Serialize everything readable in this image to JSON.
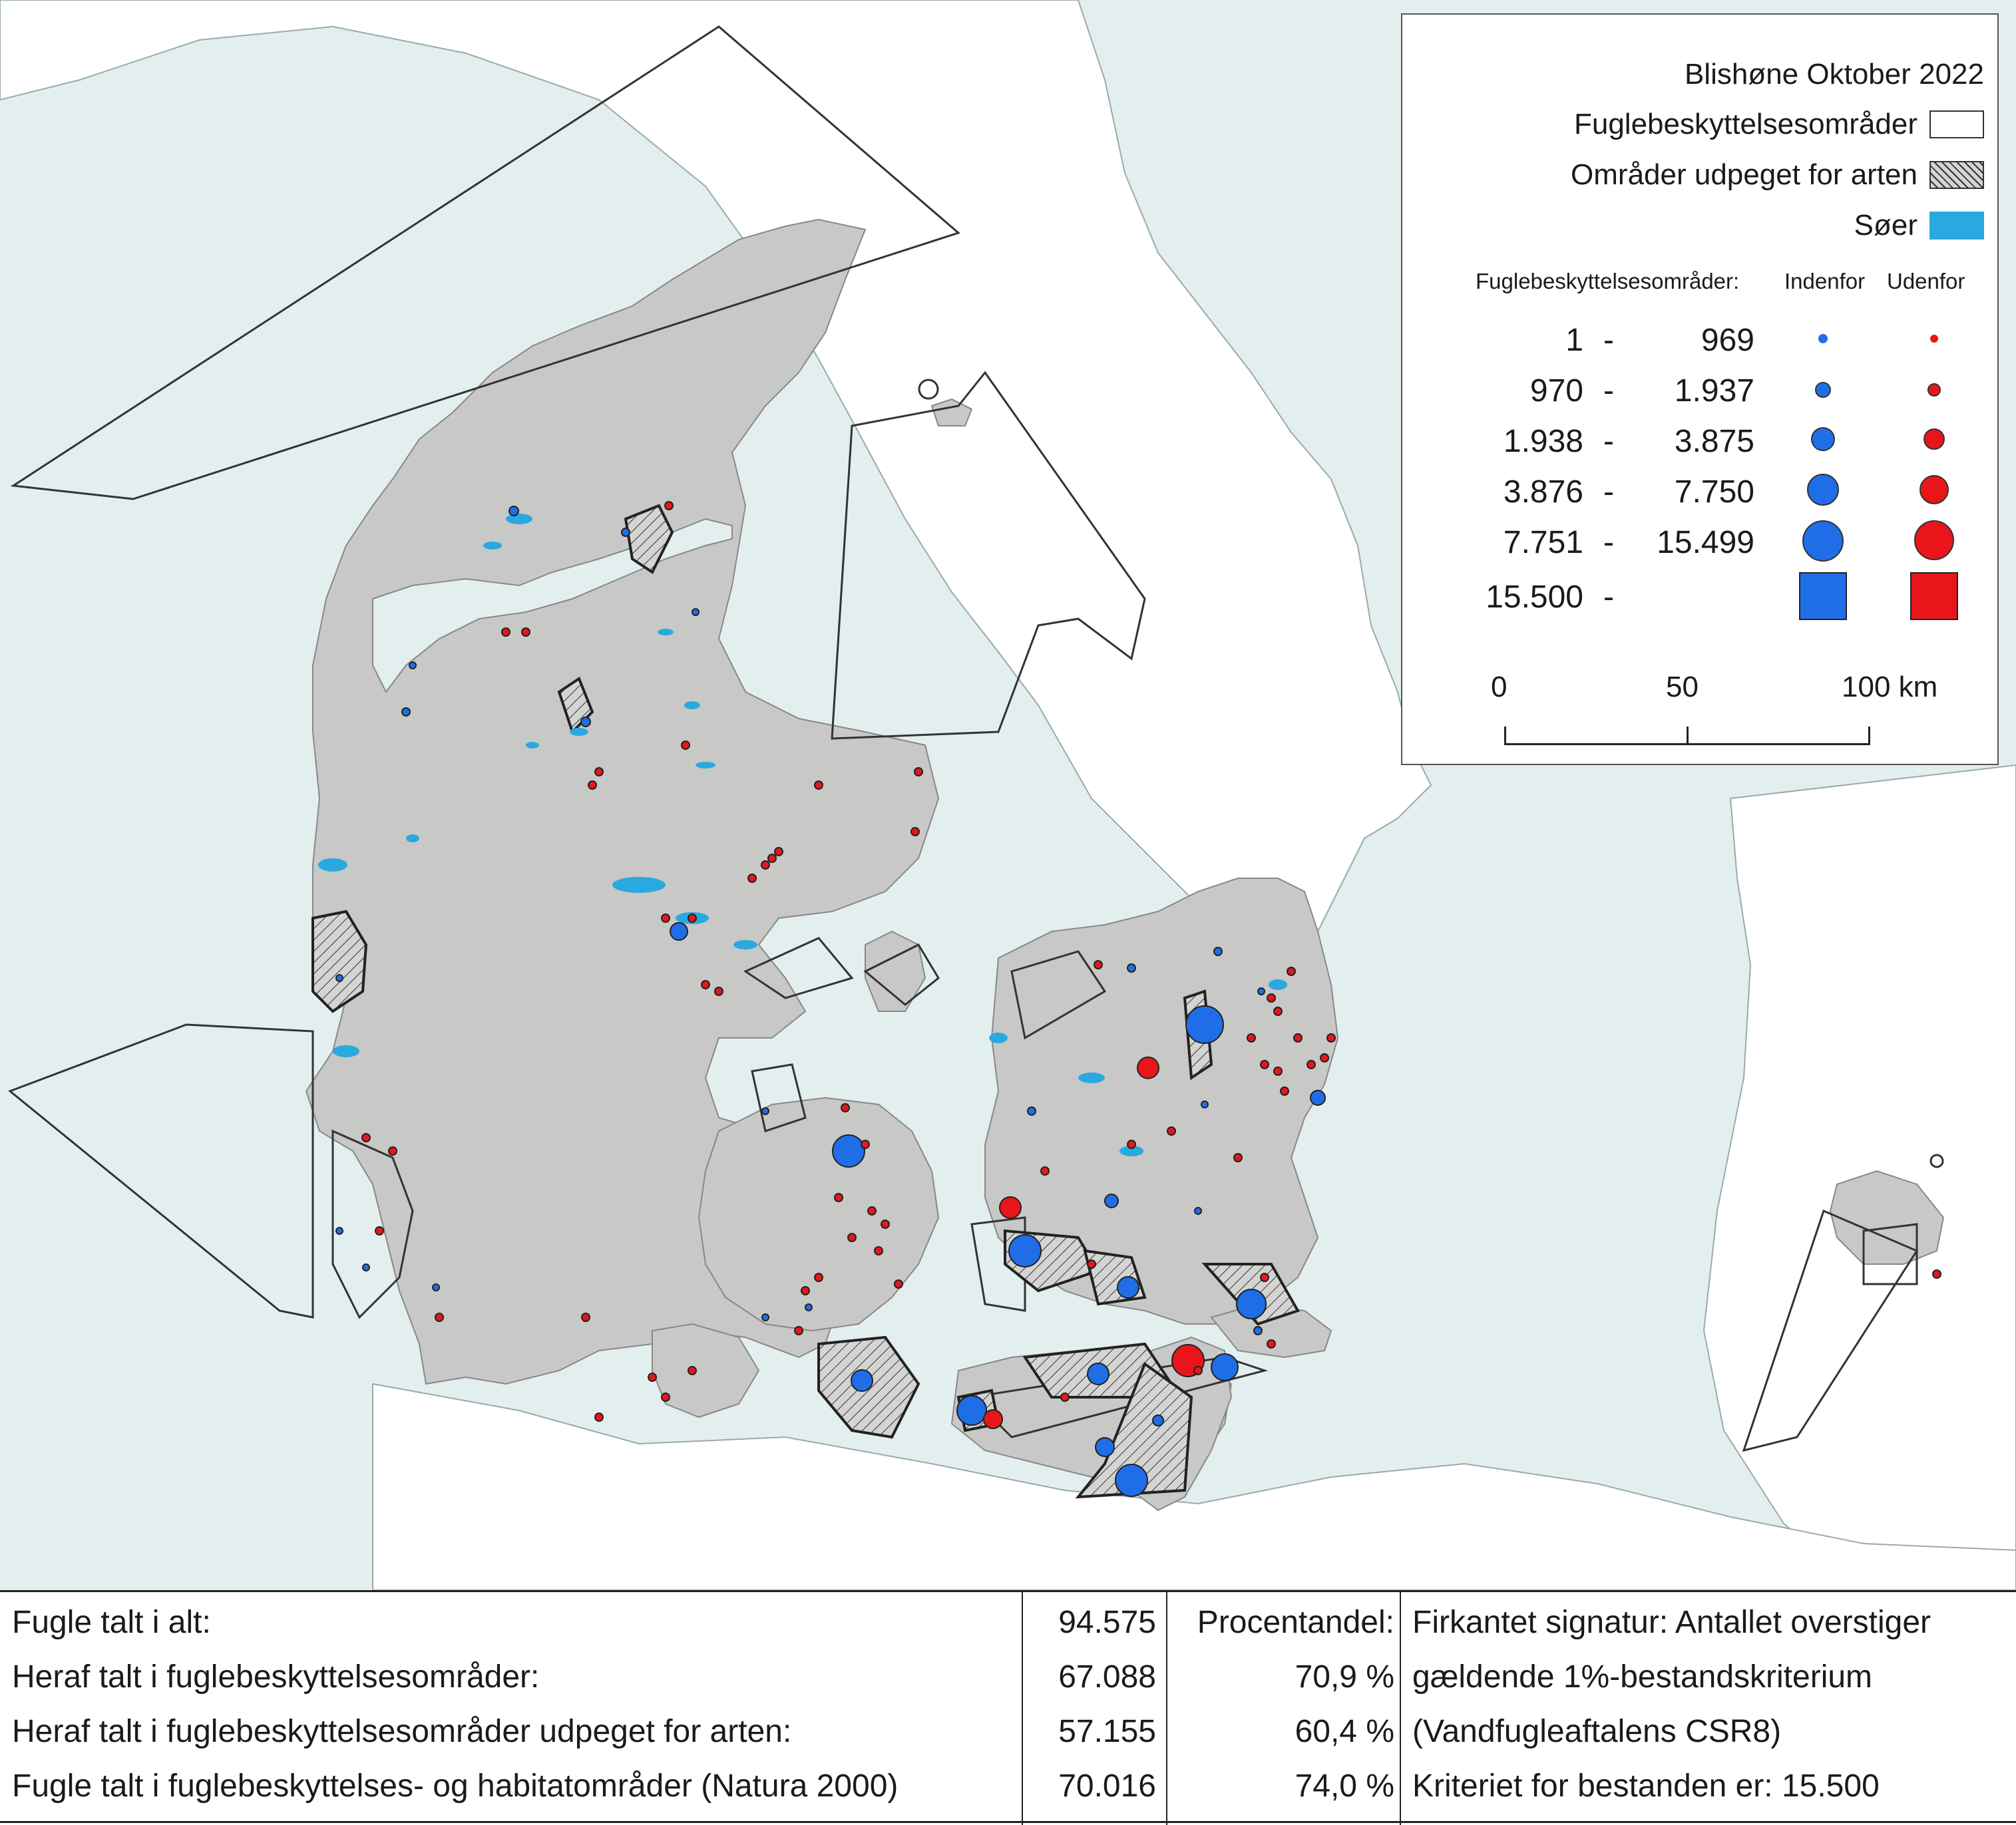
{
  "legend": {
    "title": "Blishøne Oktober 2022",
    "protected_areas_label": "Fuglebeskyttelsesområder",
    "designated_areas_label": "Områder udpeget for arten",
    "lakes_label": "Søer",
    "size_header": "Fuglebeskyttelsesområder:",
    "inside_label": "Indenfor",
    "outside_label": "Udenfor",
    "classes": [
      {
        "from": "1",
        "dash": "-",
        "to": "969"
      },
      {
        "from": "970",
        "dash": "-",
        "to": "1.937"
      },
      {
        "from": "1.938",
        "dash": "-",
        "to": "3.875"
      },
      {
        "from": "3.876",
        "dash": "-",
        "to": "7.750"
      },
      {
        "from": "7.751",
        "dash": "-",
        "to": "15.499"
      },
      {
        "from": "15.500",
        "dash": "-",
        "to": ""
      }
    ],
    "scale": {
      "t0": "0",
      "t1": "50",
      "t2": "100 km"
    },
    "colors": {
      "inside": "#1f6ee8",
      "outside": "#e8161b",
      "lakes": "#29a9e0",
      "land": "#c8c8c6",
      "sea": "#e3efef"
    }
  },
  "stats": {
    "rows": [
      {
        "label": "Fugle talt i alt:",
        "value": "94.575",
        "pct": "Procentandel:",
        "note": "Firkantet signatur: Antallet overstiger"
      },
      {
        "label": "Heraf talt i fuglebeskyttelsesområder:",
        "value": "67.088",
        "pct": "70,9 %",
        "note": "gældende 1%-bestandskriterium"
      },
      {
        "label": "Heraf talt i fuglebeskyttelsesområder udpeget for arten:",
        "value": "57.155",
        "pct": "60,4 %",
        "note": "(Vandfugleaftalens CSR8)"
      },
      {
        "label": "Fugle talt i fuglebeskyttelses- og habitatområder (Natura 2000)",
        "value": "70.016",
        "pct": "74,0 %",
        "note": "Kriteriet for bestanden er: 15.500"
      }
    ]
  }
}
